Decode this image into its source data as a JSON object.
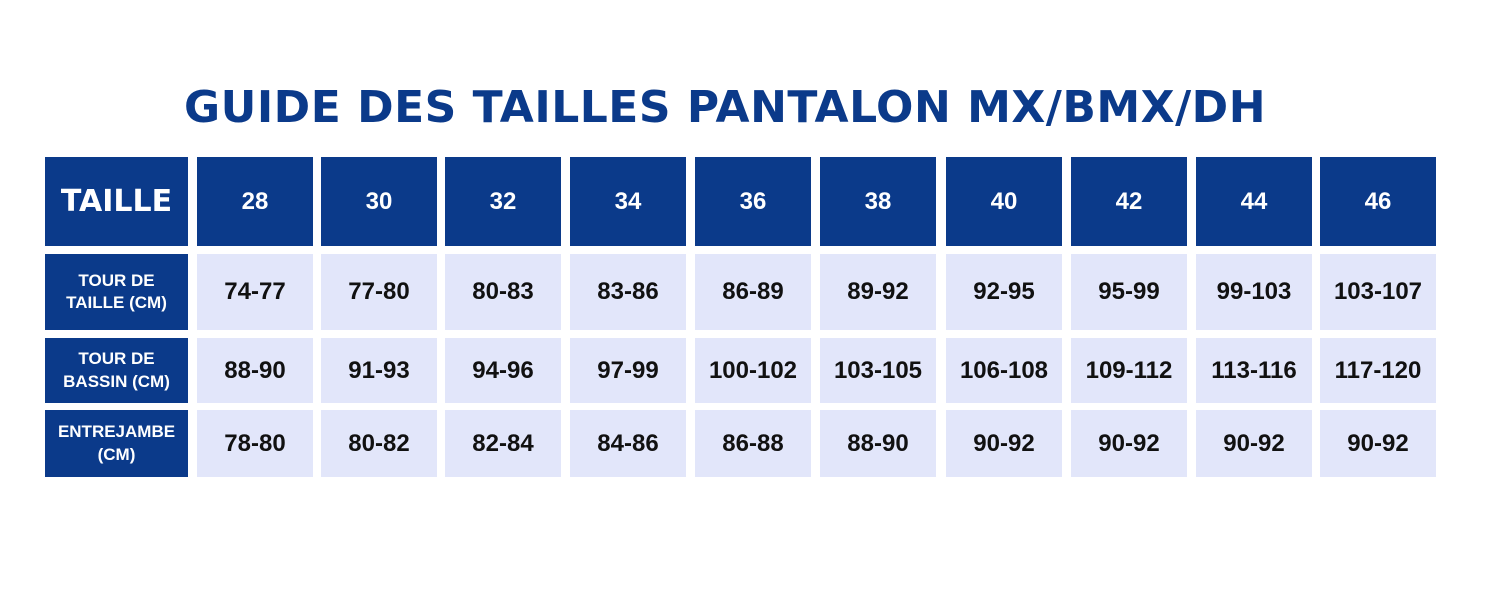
{
  "title": "GUIDE DES TAILLES PANTALON MX/BMX/DH",
  "table": {
    "corner_label": "TAILLE",
    "sizes": [
      "28",
      "30",
      "32",
      "34",
      "36",
      "38",
      "40",
      "42",
      "44",
      "46"
    ],
    "rows": [
      {
        "label_line1": "TOUR DE",
        "label_line2": "TAILLE (CM)",
        "values": [
          "74-77",
          "77-80",
          "80-83",
          "83-86",
          "86-89",
          "89-92",
          "92-95",
          "95-99",
          "99-103",
          "103-107"
        ]
      },
      {
        "label_line1": "TOUR DE",
        "label_line2": "BASSIN (CM)",
        "values": [
          "88-90",
          "91-93",
          "94-96",
          "97-99",
          "100-102",
          "103-105",
          "106-108",
          "109-112",
          "113-116",
          "117-120"
        ]
      },
      {
        "label_line1": "ENTREJAMBE",
        "label_line2": "(CM)",
        "values": [
          "78-80",
          "80-82",
          "82-84",
          "84-86",
          "86-88",
          "88-90",
          "90-92",
          "90-92",
          "90-92",
          "90-92"
        ]
      }
    ]
  },
  "colors": {
    "primary_blue": "#0b3a8a",
    "cell_background": "#e2e6fa",
    "value_text": "#111111"
  }
}
